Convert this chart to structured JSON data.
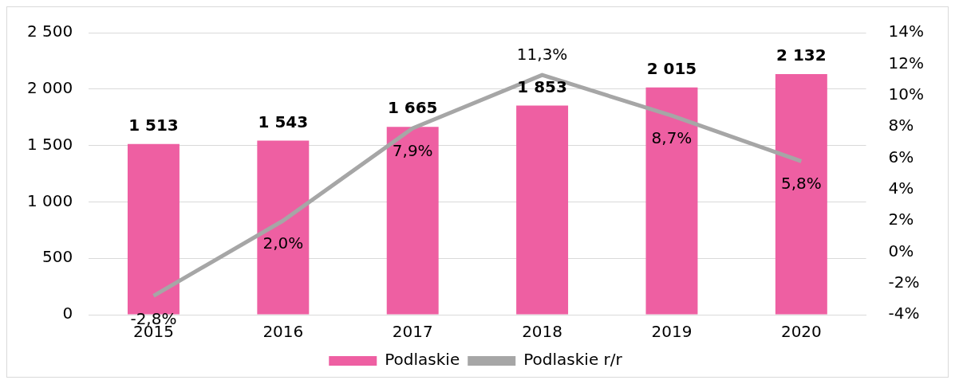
{
  "chart_data": {
    "type": "bar",
    "categories": [
      "2015",
      "2016",
      "2017",
      "2018",
      "2019",
      "2020"
    ],
    "series": [
      {
        "name": "Podlaskie",
        "color": "#ee5fa2",
        "values": [
          1513,
          1543,
          1665,
          1853,
          2015,
          2132
        ],
        "value_labels": [
          "1 513",
          "1 543",
          "1 665",
          "1 853",
          "2 015",
          "2 132"
        ]
      },
      {
        "name": "Podlaskie r/r",
        "type": "line",
        "axis": "y2",
        "color": "#a6a6a6",
        "values": [
          -2.8,
          2.0,
          7.9,
          11.3,
          8.7,
          5.8
        ],
        "value_labels": [
          "-2,8%",
          "2,0%",
          "7,9%",
          "11,3%",
          "8,7%",
          "5,8%"
        ]
      }
    ],
    "ylim": [
      0,
      2500
    ],
    "yticks": [
      0,
      500,
      {
        "value": 1000,
        "label": "1 000"
      },
      {
        "value": 1500,
        "label": "1 500"
      },
      {
        "value": 2000,
        "label": "2 000"
      },
      {
        "value": 2500,
        "label": "2 500"
      }
    ],
    "y2lim": [
      -4,
      14
    ],
    "y2ticks": [
      {
        "value": -4,
        "label": "-4%"
      },
      {
        "value": -2,
        "label": "-2%"
      },
      {
        "value": 0,
        "label": "0%"
      },
      {
        "value": 2,
        "label": "2%"
      },
      {
        "value": 4,
        "label": "4%"
      },
      {
        "value": 6,
        "label": "6%"
      },
      {
        "value": 8,
        "label": "8%"
      },
      {
        "value": 10,
        "label": "10%"
      },
      {
        "value": 12,
        "label": "12%"
      },
      {
        "value": 14,
        "label": "14%"
      }
    ],
    "grid": "y",
    "legend": "bottom",
    "marker": "none"
  }
}
